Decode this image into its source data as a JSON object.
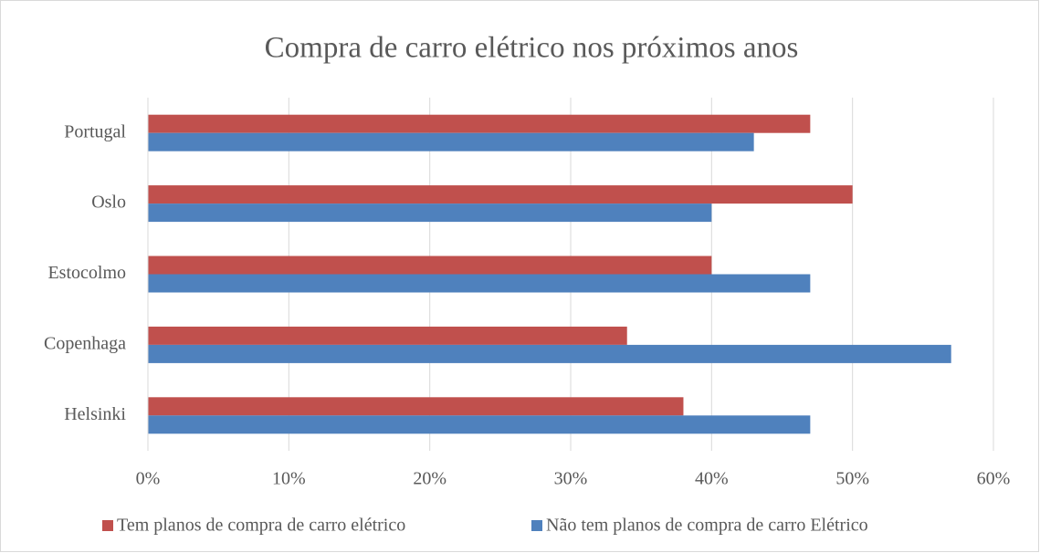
{
  "chart_data": {
    "type": "bar",
    "orientation": "horizontal",
    "title": "Compra de carro elétrico nos próximos anos",
    "categories": [
      "Portugal",
      "Oslo",
      "Estocolmo",
      "Copenhaga",
      "Helsinki"
    ],
    "series": [
      {
        "name": "Tem planos de compra de carro elétrico",
        "color": "#c0504d",
        "values": [
          47,
          50,
          40,
          34,
          38
        ]
      },
      {
        "name": "Não tem planos de compra de carro Elétrico",
        "color": "#4f81bd",
        "values": [
          43,
          40,
          47,
          57,
          47
        ]
      }
    ],
    "xlim": [
      0,
      60
    ],
    "xticks": [
      {
        "value": 0,
        "label": "0%"
      },
      {
        "value": 10,
        "label": "10%"
      },
      {
        "value": 20,
        "label": "20%"
      },
      {
        "value": 30,
        "label": "30%"
      },
      {
        "value": 40,
        "label": "40%"
      },
      {
        "value": 50,
        "label": "50%"
      },
      {
        "value": 60,
        "label": "60%"
      }
    ],
    "grid": true,
    "legend": "bottom"
  }
}
